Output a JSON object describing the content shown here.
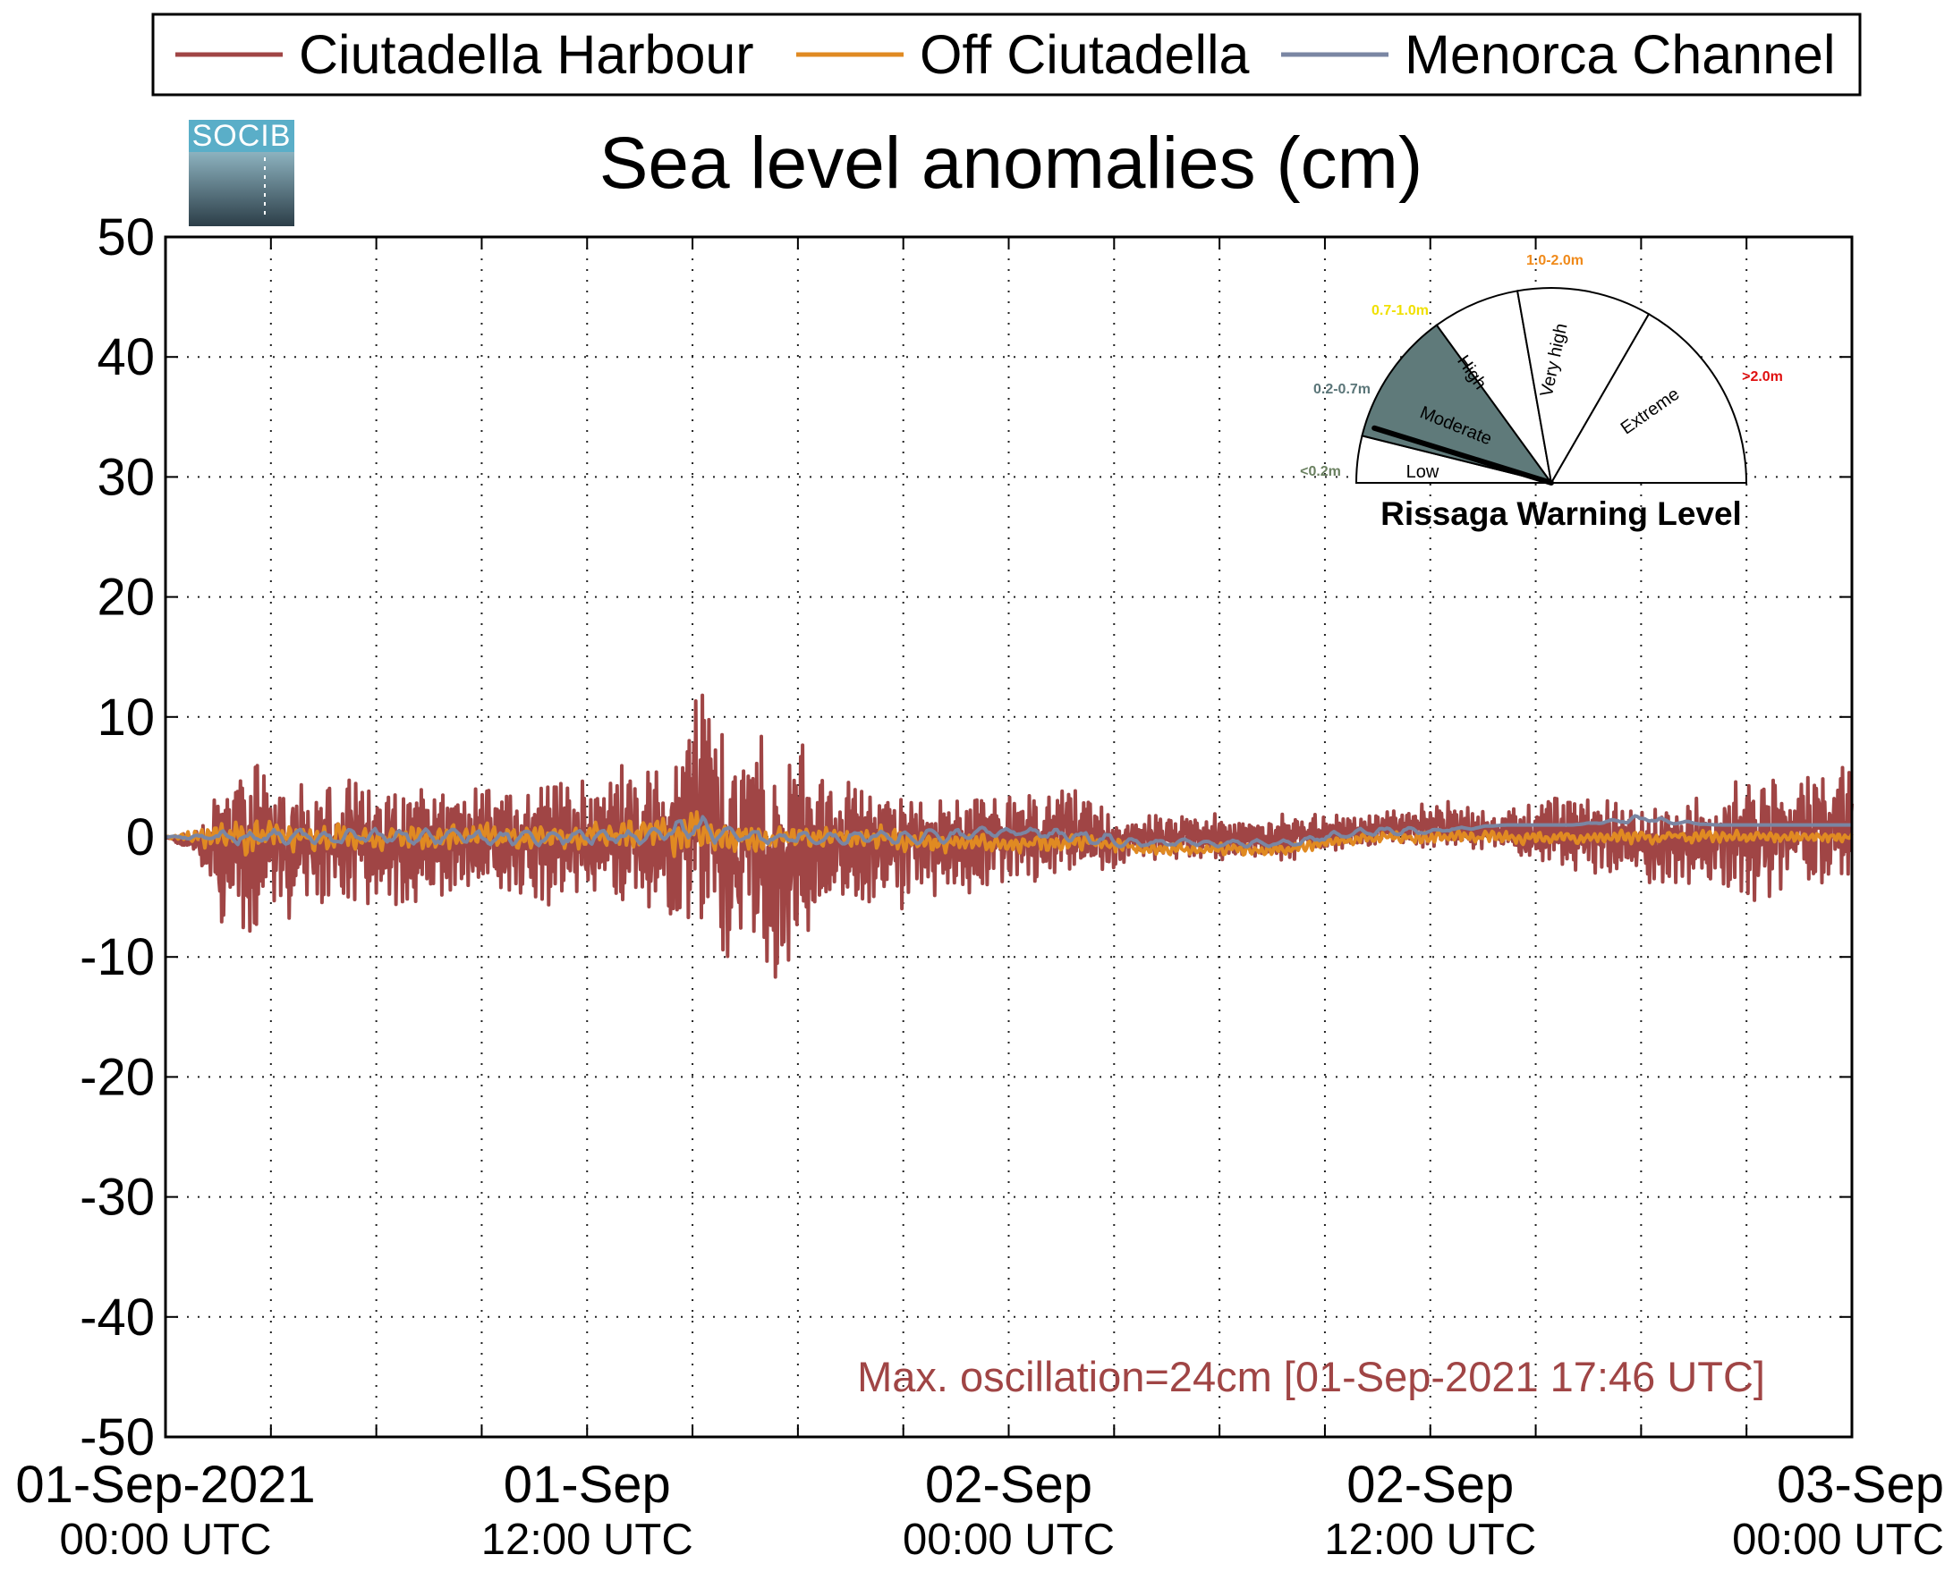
{
  "chart_data": {
    "type": "line",
    "title": "Sea level anomalies (cm)",
    "ylim": [
      -50,
      50
    ],
    "y_ticks": [
      "50",
      "40",
      "30",
      "20",
      "10",
      "0",
      "-10",
      "-20",
      "-30",
      "-40",
      "-50"
    ],
    "x_range": [
      "2021-09-01 00:00 UTC",
      "2021-09-03 00:00 UTC"
    ],
    "x_ticks": [
      {
        "t": 0,
        "date": "01-Sep-2021",
        "time": "00:00 UTC"
      },
      {
        "t": 12,
        "date": "01-Sep",
        "time": "12:00 UTC"
      },
      {
        "t": 24,
        "date": "02-Sep",
        "time": "00:00 UTC"
      },
      {
        "t": 36,
        "date": "02-Sep",
        "time": "12:00 UTC"
      },
      {
        "t": 48,
        "date": "03-Sep",
        "time": "00:00 UTC"
      }
    ],
    "grid": true,
    "legend_position": "top",
    "series": [
      {
        "name": "Ciutadella Harbour",
        "color": "#a04545",
        "x_hours": [
          0,
          1,
          1.5,
          2,
          2.5,
          3,
          3.5,
          4,
          5,
          6,
          7,
          8,
          9,
          10,
          11,
          12,
          13,
          14,
          14.5,
          15,
          15.5,
          16,
          16.5,
          17,
          17.5,
          18,
          18.5,
          19,
          20,
          21,
          22,
          23,
          24,
          25,
          26,
          27,
          28,
          30,
          32,
          34,
          36,
          37,
          38,
          40,
          42,
          44,
          45,
          46,
          47,
          48
        ],
        "upper": [
          0,
          1,
          6,
          7,
          8,
          6,
          5,
          5,
          5,
          4,
          5,
          4,
          5,
          5,
          5,
          5,
          6,
          7,
          6,
          12,
          13,
          7,
          8,
          9,
          7,
          9,
          7,
          5,
          5,
          5,
          4,
          4,
          4,
          4,
          4,
          2,
          2,
          2,
          2,
          2,
          3,
          3,
          3,
          4,
          3,
          4,
          5,
          7,
          6,
          6
        ],
        "lower": [
          0,
          -2,
          -8,
          -9,
          -9,
          -7,
          -7,
          -6,
          -6,
          -6,
          -6,
          -5,
          -6,
          -6,
          -6,
          -5,
          -6,
          -7,
          -8,
          -10,
          -8,
          -11,
          -10,
          -12,
          -13,
          -10,
          -8,
          -7,
          -6,
          -6,
          -5,
          -5,
          -4,
          -4,
          -3,
          -3,
          -2,
          -2,
          -2,
          -1,
          -1,
          -2,
          -2,
          -3,
          -4,
          -5,
          -6,
          -6,
          -5,
          -4
        ]
      },
      {
        "name": "Off Ciutadella",
        "color": "#e08a22",
        "x_hours": [
          0,
          2,
          4,
          6,
          8,
          10,
          12,
          14,
          14.5,
          15,
          15.5,
          16,
          18,
          20,
          22,
          24,
          26,
          28,
          30,
          32,
          34,
          36,
          38,
          40,
          42,
          44,
          46,
          48
        ],
        "upper": [
          0,
          3,
          2,
          2,
          2,
          2,
          2,
          3,
          3,
          4,
          3,
          2,
          2,
          2,
          1,
          1,
          1,
          0,
          0,
          0,
          1,
          1,
          1,
          1,
          1,
          1,
          1,
          1
        ],
        "lower": [
          0,
          -3,
          -2,
          -2,
          -2,
          -2,
          -2,
          -2,
          -3,
          -3,
          -2,
          -2,
          -2,
          -2,
          -2,
          -2,
          -2,
          -2,
          -2,
          -2,
          -1,
          -1,
          -1,
          -1,
          -1,
          -1,
          -1,
          -1
        ]
      },
      {
        "name": "Menorca Channel",
        "color": "#7a86a3",
        "x_hours": [
          0,
          2,
          4,
          6,
          8,
          10,
          12,
          14,
          15,
          16,
          18,
          20,
          22,
          24,
          26,
          28,
          30,
          32,
          34,
          36,
          38,
          40,
          42,
          44,
          46,
          48
        ],
        "upper": [
          0,
          1,
          1,
          1,
          1,
          1,
          1,
          1,
          3,
          1,
          1,
          1,
          1,
          1,
          1,
          0,
          0,
          0,
          1,
          1,
          1,
          1,
          2,
          1,
          1,
          1
        ],
        "lower": [
          0,
          -1,
          -1,
          -1,
          -1,
          -1,
          -1,
          -1,
          -1,
          -1,
          -1,
          -1,
          -1,
          0,
          -1,
          -1,
          -1,
          -1,
          0,
          0,
          1,
          1,
          1,
          1,
          1,
          1
        ]
      }
    ],
    "annotation": "Max. oscillation=24cm [01-Sep-2021 17:46 UTC]"
  },
  "gauge": {
    "title": "Rissaga Warning Level",
    "segments": [
      {
        "label": "Low",
        "range": "<0.2m",
        "range_color": "#6a8060",
        "filled": false
      },
      {
        "label": "Moderate",
        "range": "0.2-0.7m",
        "range_color": "#5a7578",
        "filled": true,
        "fill_color": "#5f7a7a"
      },
      {
        "label": "High",
        "range": "0.7-1.0m",
        "range_color": "#f0e000",
        "filled": false
      },
      {
        "label": "Very high",
        "range": "1.0-2.0m",
        "range_color": "#f08a1a",
        "filled": false
      },
      {
        "label": "Extreme",
        "range": ">2.0m",
        "range_color": "#e01010",
        "filled": false
      }
    ],
    "current_level_m": 0.24
  },
  "logo": {
    "text": "SOCIB"
  }
}
